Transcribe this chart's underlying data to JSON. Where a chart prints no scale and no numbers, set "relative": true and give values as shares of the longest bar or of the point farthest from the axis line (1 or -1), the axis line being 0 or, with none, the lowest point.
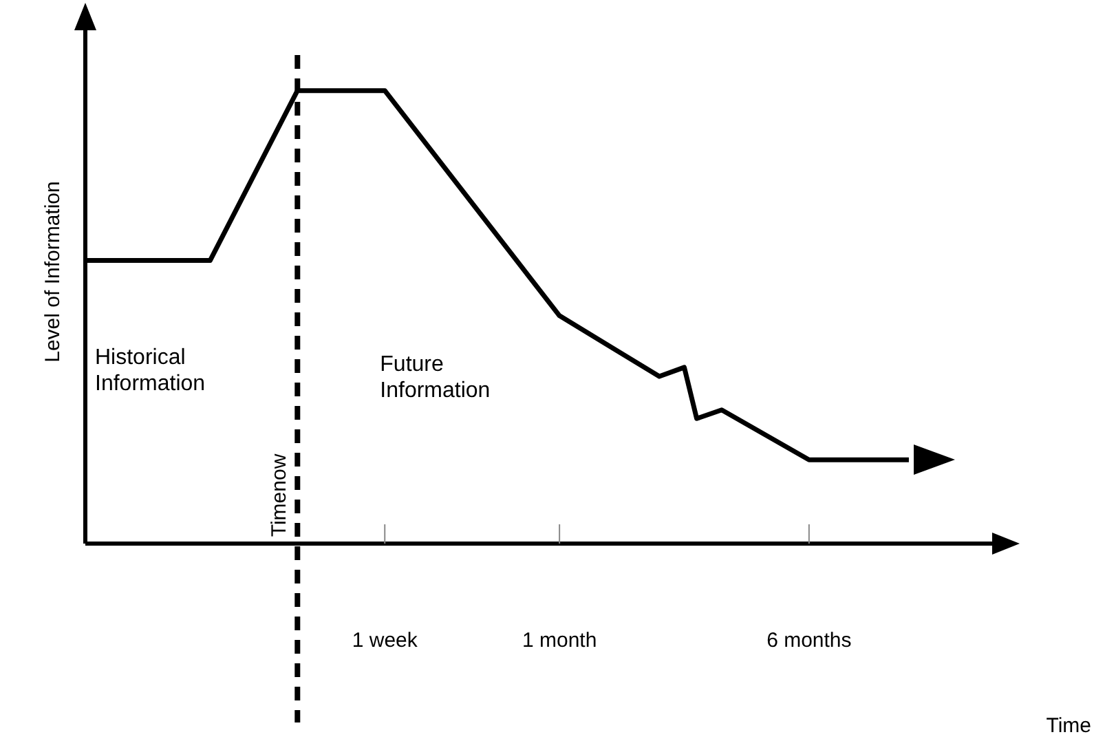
{
  "chart_data": {
    "type": "line",
    "relative": true,
    "xlabel": "Time",
    "ylabel": "Level of Information",
    "categories": [
      null,
      null,
      null,
      null,
      null,
      null,
      null,
      null,
      null,
      null,
      null,
      null,
      null,
      null,
      null,
      null,
      null,
      null,
      null,
      null,
      null,
      null,
      null,
      null,
      "1 week",
      null,
      null,
      null,
      null,
      null,
      null,
      null,
      null,
      null,
      null,
      null,
      null,
      null,
      "1 month",
      null,
      null,
      null,
      null,
      null,
      null,
      null,
      null,
      null,
      null,
      null,
      null,
      null,
      null,
      null,
      null,
      null,
      null,
      null,
      "6 months",
      null,
      null,
      null,
      null,
      null,
      null,
      null,
      null,
      null,
      null,
      null,
      null,
      null,
      null,
      null,
      null
    ],
    "series": [
      {
        "color": "#000000",
        "values": [
          0.625,
          null,
          null,
          null,
          null,
          null,
          null,
          null,
          null,
          null,
          0.625,
          null,
          null,
          null,
          null,
          null,
          null,
          1,
          null,
          null,
          null,
          null,
          null,
          null,
          1,
          null,
          null,
          null,
          null,
          null,
          null,
          null,
          null,
          null,
          null,
          null,
          null,
          null,
          0.503,
          null,
          null,
          null,
          null,
          null,
          null,
          null,
          0.369,
          null,
          0.389,
          0.276,
          null,
          0.295,
          null,
          null,
          null,
          null,
          null,
          null,
          0.185,
          null,
          null,
          null,
          null,
          null,
          null,
          null,
          0.185,
          null,
          null,
          null,
          null,
          null,
          null,
          null,
          null
        ]
      }
    ],
    "annotations": [
      "Historical Information",
      "Future Information",
      "Timenow"
    ],
    "grid": false,
    "legend": false,
    "marker": "none",
    "line_style": "solid"
  }
}
